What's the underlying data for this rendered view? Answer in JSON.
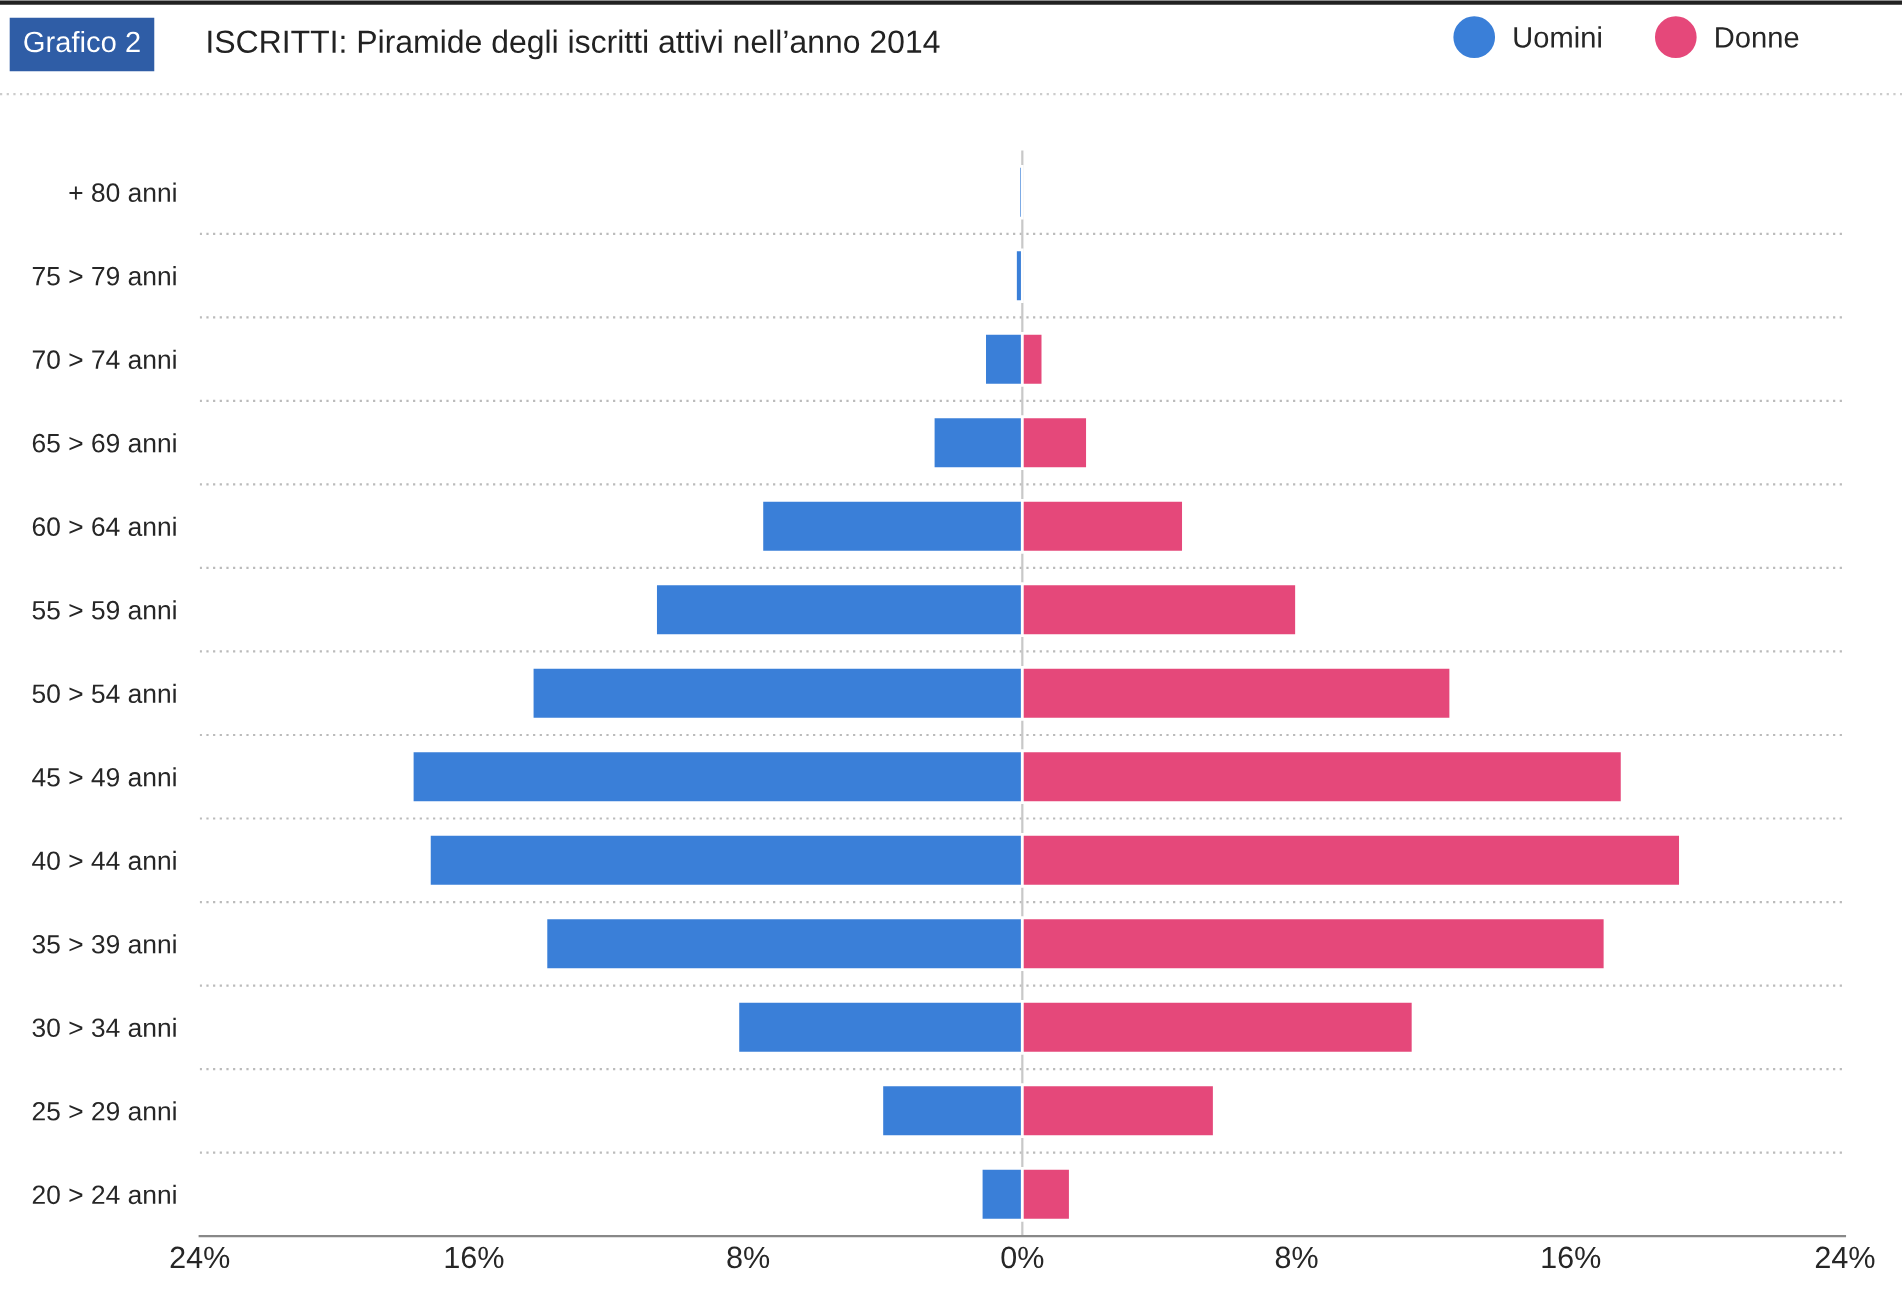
{
  "chart_data": {
    "type": "bar",
    "orientation": "horizontal",
    "title": "ISCRITTI: Piramide degli iscritti attivi nell’anno 2014",
    "annotations": [
      "Grafico 2"
    ],
    "categories": [
      "+ 80 anni",
      "75 > 79 anni",
      "70 > 74 anni",
      "65 > 69 anni",
      "60 > 64 anni",
      "55 > 59 anni",
      "50 > 54 anni",
      "45 > 49 anni",
      "40 > 44 anni",
      "35 > 39 anni",
      "30 > 34 anni",
      "25 > 29 anni",
      "20 > 24 anni"
    ],
    "series": [
      {
        "name": "Uomini",
        "color": "#3a7fd8",
        "values": [
          -0.1,
          -0.2,
          -1.1,
          -2.6,
          -7.6,
          -10.7,
          -14.3,
          -17.8,
          -17.3,
          -13.9,
          -8.3,
          -4.1,
          -1.2
        ]
      },
      {
        "name": "Donne",
        "color": "#e5487a",
        "values": [
          null,
          null,
          0.6,
          1.9,
          4.7,
          8.0,
          12.5,
          17.5,
          19.2,
          17.0,
          11.4,
          5.6,
          1.4
        ]
      }
    ],
    "xlim": [
      -24,
      24
    ],
    "xticks": [
      {
        "value": -24,
        "label": "24%"
      },
      {
        "value": -16,
        "label": "16%"
      },
      {
        "value": -8,
        "label": "8%"
      },
      {
        "value": 0,
        "label": "0%"
      },
      {
        "value": 8,
        "label": "8%"
      },
      {
        "value": 16,
        "label": "16%"
      },
      {
        "value": 24,
        "label": "24%"
      }
    ],
    "ref_lines": [
      {
        "axis": "x",
        "value": 0,
        "color": "#c8c8c8"
      }
    ],
    "legend": "top right",
    "stacked": true
  }
}
